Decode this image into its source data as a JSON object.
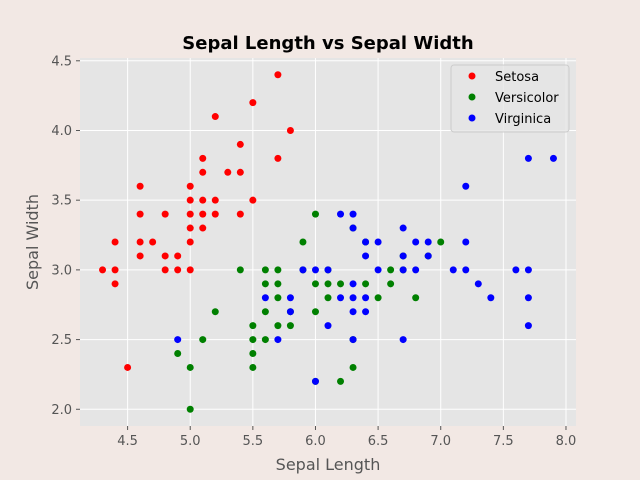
{
  "colors": {
    "figure_bg": "#f2e8e4",
    "plot_bg": "#e5e5e5",
    "grid": "#ffffff",
    "tick_text": "#555555",
    "axis_label": "#555555",
    "title": "#000000"
  },
  "chart_data": {
    "type": "scatter",
    "title": "Sepal Length vs Sepal Width",
    "xlabel": "Sepal Length",
    "ylabel": "Sepal Width",
    "xlim": [
      4.12,
      8.08
    ],
    "ylim": [
      1.88,
      4.52
    ],
    "xticks": [
      4.5,
      5.0,
      5.5,
      6.0,
      6.5,
      7.0,
      7.5,
      8.0
    ],
    "xtick_labels": [
      "4.5",
      "5.0",
      "5.5",
      "6.0",
      "6.5",
      "7.0",
      "7.5",
      "8.0"
    ],
    "yticks": [
      2.0,
      2.5,
      3.0,
      3.5,
      4.0,
      4.5
    ],
    "ytick_labels": [
      "2.0",
      "2.5",
      "3.0",
      "3.5",
      "4.0",
      "4.5"
    ],
    "grid": true,
    "legend_position": "top-right",
    "series": [
      {
        "name": "Setosa",
        "color": "#ff0000",
        "points": [
          [
            4.3,
            3.0
          ],
          [
            4.4,
            3.2
          ],
          [
            4.4,
            3.0
          ],
          [
            4.4,
            2.9
          ],
          [
            4.5,
            2.3
          ],
          [
            4.6,
            3.6
          ],
          [
            4.6,
            3.4
          ],
          [
            4.6,
            3.2
          ],
          [
            4.6,
            3.1
          ],
          [
            4.7,
            3.2
          ],
          [
            4.8,
            3.4
          ],
          [
            4.8,
            3.1
          ],
          [
            4.8,
            3.0
          ],
          [
            4.9,
            3.1
          ],
          [
            4.9,
            3.0
          ],
          [
            5.0,
            3.6
          ],
          [
            5.0,
            3.5
          ],
          [
            5.0,
            3.4
          ],
          [
            5.0,
            3.3
          ],
          [
            5.0,
            3.2
          ],
          [
            5.0,
            3.0
          ],
          [
            5.1,
            3.8
          ],
          [
            5.1,
            3.7
          ],
          [
            5.1,
            3.5
          ],
          [
            5.1,
            3.4
          ],
          [
            5.1,
            3.3
          ],
          [
            5.2,
            4.1
          ],
          [
            5.2,
            3.5
          ],
          [
            5.2,
            3.4
          ],
          [
            5.3,
            3.7
          ],
          [
            5.4,
            3.9
          ],
          [
            5.4,
            3.7
          ],
          [
            5.4,
            3.4
          ],
          [
            5.5,
            4.2
          ],
          [
            5.5,
            3.5
          ],
          [
            5.7,
            4.4
          ],
          [
            5.7,
            3.8
          ],
          [
            5.8,
            4.0
          ]
        ]
      },
      {
        "name": "Versicolor",
        "color": "#008000",
        "points": [
          [
            4.9,
            2.4
          ],
          [
            5.0,
            2.3
          ],
          [
            5.0,
            2.0
          ],
          [
            5.1,
            2.5
          ],
          [
            5.2,
            2.7
          ],
          [
            5.4,
            3.0
          ],
          [
            5.5,
            2.6
          ],
          [
            5.5,
            2.5
          ],
          [
            5.5,
            2.4
          ],
          [
            5.5,
            2.3
          ],
          [
            5.6,
            3.0
          ],
          [
            5.6,
            2.9
          ],
          [
            5.6,
            2.7
          ],
          [
            5.6,
            2.5
          ],
          [
            5.7,
            3.0
          ],
          [
            5.7,
            2.9
          ],
          [
            5.7,
            2.8
          ],
          [
            5.7,
            2.6
          ],
          [
            5.8,
            2.7
          ],
          [
            5.8,
            2.6
          ],
          [
            5.9,
            3.2
          ],
          [
            5.9,
            3.0
          ],
          [
            6.0,
            3.4
          ],
          [
            6.0,
            2.9
          ],
          [
            6.0,
            2.7
          ],
          [
            6.0,
            2.2
          ],
          [
            6.1,
            3.0
          ],
          [
            6.1,
            2.9
          ],
          [
            6.1,
            2.8
          ],
          [
            6.2,
            2.9
          ],
          [
            6.2,
            2.2
          ],
          [
            6.3,
            3.3
          ],
          [
            6.3,
            2.5
          ],
          [
            6.3,
            2.3
          ],
          [
            6.4,
            3.2
          ],
          [
            6.4,
            2.9
          ],
          [
            6.5,
            2.8
          ],
          [
            6.6,
            3.0
          ],
          [
            6.6,
            2.9
          ],
          [
            6.7,
            3.1
          ],
          [
            6.7,
            3.0
          ],
          [
            6.8,
            2.8
          ],
          [
            6.9,
            3.1
          ],
          [
            7.0,
            3.2
          ]
        ]
      },
      {
        "name": "Virginica",
        "color": "#0000ff",
        "points": [
          [
            4.9,
            2.5
          ],
          [
            5.6,
            2.8
          ],
          [
            5.7,
            2.5
          ],
          [
            5.8,
            2.8
          ],
          [
            5.8,
            2.7
          ],
          [
            5.9,
            3.0
          ],
          [
            6.0,
            3.0
          ],
          [
            6.0,
            2.2
          ],
          [
            6.1,
            3.0
          ],
          [
            6.1,
            2.6
          ],
          [
            6.2,
            3.4
          ],
          [
            6.2,
            2.8
          ],
          [
            6.3,
            3.4
          ],
          [
            6.3,
            3.3
          ],
          [
            6.3,
            2.9
          ],
          [
            6.3,
            2.8
          ],
          [
            6.3,
            2.7
          ],
          [
            6.3,
            2.5
          ],
          [
            6.4,
            3.2
          ],
          [
            6.4,
            3.1
          ],
          [
            6.4,
            2.8
          ],
          [
            6.4,
            2.7
          ],
          [
            6.5,
            3.2
          ],
          [
            6.5,
            3.0
          ],
          [
            6.7,
            3.3
          ],
          [
            6.7,
            3.1
          ],
          [
            6.7,
            3.0
          ],
          [
            6.7,
            2.5
          ],
          [
            6.8,
            3.2
          ],
          [
            6.8,
            3.0
          ],
          [
            6.9,
            3.2
          ],
          [
            6.9,
            3.1
          ],
          [
            7.1,
            3.0
          ],
          [
            7.2,
            3.6
          ],
          [
            7.2,
            3.2
          ],
          [
            7.2,
            3.0
          ],
          [
            7.3,
            2.9
          ],
          [
            7.4,
            2.8
          ],
          [
            7.6,
            3.0
          ],
          [
            7.7,
            3.8
          ],
          [
            7.7,
            3.0
          ],
          [
            7.7,
            2.8
          ],
          [
            7.7,
            2.6
          ],
          [
            7.9,
            3.8
          ]
        ]
      }
    ]
  }
}
